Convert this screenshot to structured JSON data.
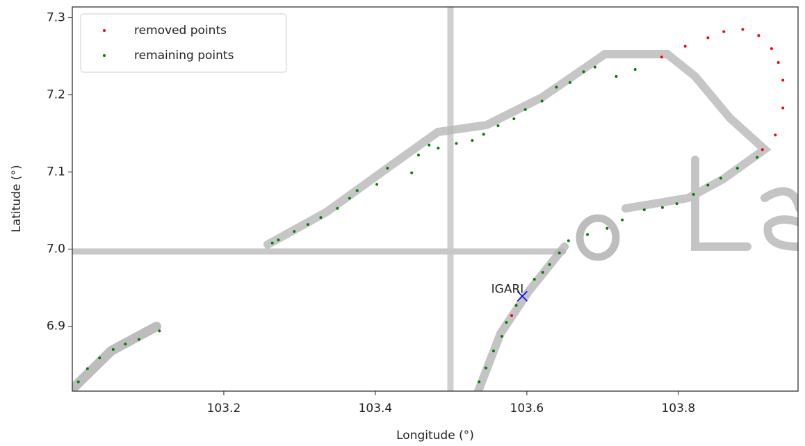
{
  "chart_data": {
    "type": "scatter",
    "xlabel": "Longitude (°)",
    "ylabel": "Latitude (°)",
    "xlim": [
      103.0,
      103.958
    ],
    "ylim": [
      6.816,
      7.314
    ],
    "xticks": [
      103.2,
      103.4,
      103.6,
      103.8
    ],
    "yticks": [
      6.9,
      {
        "value": 7.0,
        "label": "7.0"
      },
      7.1,
      7.2,
      7.3
    ],
    "legend": "upper left",
    "series": [
      {
        "name": "removed points",
        "color": "#ff0000",
        "x": [
          103.778,
          103.809,
          103.839,
          103.86,
          103.885,
          103.906,
          103.923,
          103.932,
          103.938,
          103.938,
          103.928,
          103.911,
          103.58
        ],
        "values": [
          7.249,
          7.263,
          7.274,
          7.282,
          7.285,
          7.277,
          7.26,
          7.242,
          7.219,
          7.183,
          7.148,
          7.129,
          6.914
        ]
      },
      {
        "name": "remaining points",
        "color": "#008000",
        "x": [
          103.008,
          103.02,
          103.036,
          103.054,
          103.07,
          103.088,
          103.115,
          103.264,
          103.272,
          103.293,
          103.311,
          103.328,
          103.35,
          103.366,
          103.376,
          103.402,
          103.416,
          103.448,
          103.457,
          103.471,
          103.483,
          103.507,
          103.528,
          103.543,
          103.562,
          103.583,
          103.598,
          103.62,
          103.639,
          103.657,
          103.675,
          103.69,
          103.718,
          103.743,
          103.537,
          103.546,
          103.556,
          103.567,
          103.573,
          103.586,
          103.61,
          103.621,
          103.63,
          103.643,
          103.655,
          103.68,
          103.706,
          103.726,
          103.755,
          103.779,
          103.798,
          103.82,
          103.839,
          103.856,
          103.878,
          103.904
        ],
        "values": [
          6.828,
          6.845,
          6.859,
          6.87,
          6.877,
          6.883,
          6.894,
          7.008,
          7.012,
          7.023,
          7.032,
          7.041,
          7.053,
          7.066,
          7.076,
          7.084,
          7.105,
          7.099,
          7.122,
          7.135,
          7.131,
          7.137,
          7.141,
          7.149,
          7.16,
          7.169,
          7.181,
          7.192,
          7.21,
          7.216,
          7.23,
          7.236,
          7.224,
          7.233,
          6.828,
          6.846,
          6.868,
          6.887,
          6.905,
          6.927,
          6.961,
          6.97,
          6.98,
          6.995,
          7.011,
          7.019,
          7.027,
          7.038,
          7.051,
          7.054,
          7.059,
          7.071,
          7.083,
          7.092,
          7.105,
          7.119
        ]
      }
    ],
    "annotations": [
      {
        "text": "IGARI",
        "x": 103.594,
        "y": 6.939,
        "color": "#0000ff"
      }
    ]
  }
}
